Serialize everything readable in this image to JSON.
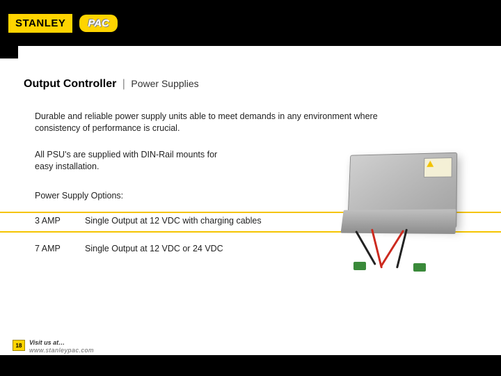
{
  "header": {
    "stanley": "STANLEY",
    "pac": "PAC"
  },
  "title": {
    "main": "Output Controller",
    "separator": "|",
    "sub": "Power Supplies"
  },
  "intro": "Durable and reliable power supply units able to meet demands in any environment where consistency of performance is crucial.",
  "dinrail": "All PSU's are supplied with DIN-Rail mounts for easy installation.",
  "options_label": "Power Supply Options:",
  "options": [
    {
      "amp": "3 AMP",
      "desc": "Single Output at 12 VDC with charging cables"
    },
    {
      "amp": "7 AMP",
      "desc": "Single Output at 12 VDC or 24 VDC"
    }
  ],
  "page_number": "18",
  "footer": {
    "visit": "Visit us at…",
    "url": "www.stanleypac.com"
  },
  "colors": {
    "brand_yellow": "#ffd400",
    "black": "#000000",
    "text": "#222222"
  }
}
